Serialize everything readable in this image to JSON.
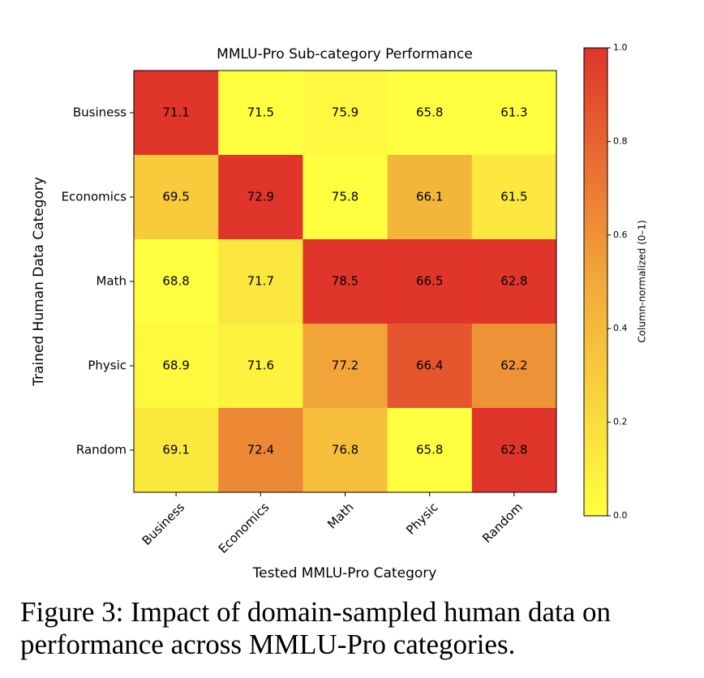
{
  "chart_data": {
    "type": "heatmap",
    "title": "MMLU-Pro Sub-category Performance",
    "x_label": "Tested MMLU-Pro Category",
    "y_label": "Trained Human Data Category",
    "x_categories": [
      "Business",
      "Economics",
      "Math",
      "Physic",
      "Random"
    ],
    "y_categories": [
      "Business",
      "Economics",
      "Math",
      "Physic",
      "Random"
    ],
    "values": [
      [
        71.1,
        71.5,
        75.9,
        65.8,
        61.3
      ],
      [
        69.5,
        72.9,
        75.8,
        66.1,
        61.5
      ],
      [
        68.8,
        71.7,
        78.5,
        66.5,
        62.8
      ],
      [
        68.9,
        71.6,
        77.2,
        66.4,
        62.2
      ],
      [
        69.1,
        72.4,
        76.8,
        65.8,
        62.8
      ]
    ],
    "normalization": "column",
    "colormap": [
      "#ffff40",
      "#f2a93a",
      "#e0352a"
    ],
    "colorbar_label": "Column-normalized (0–1)",
    "clim": [
      0,
      1
    ],
    "colorbar_ticks": [
      {
        "value": 0,
        "label": "0.0"
      },
      0.2,
      0.4,
      0.6,
      0.8,
      {
        "value": 1,
        "label": "1.0"
      }
    ]
  },
  "caption": "Figure 3: Impact of domain-sampled human data on performance across MMLU-Pro categories."
}
